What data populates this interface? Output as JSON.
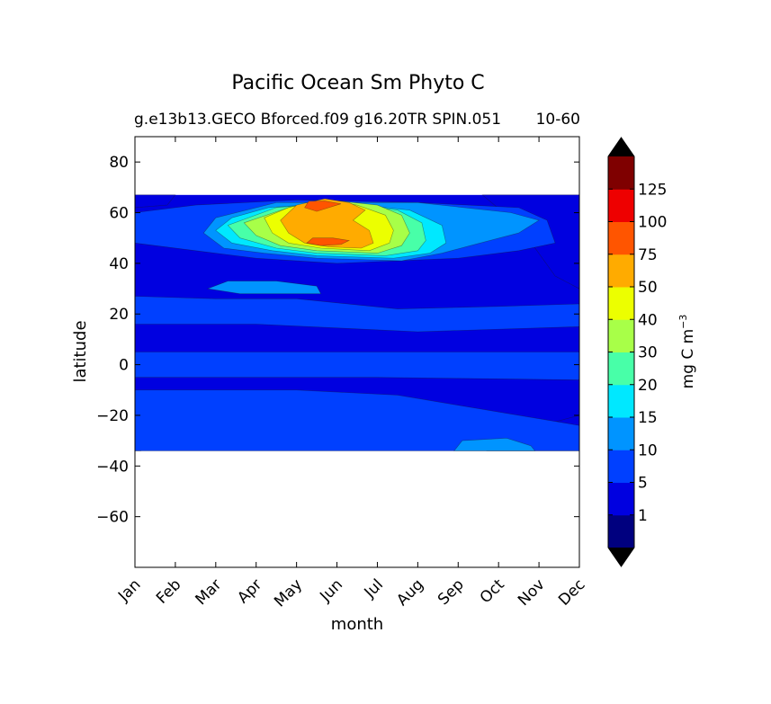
{
  "chart_data": {
    "type": "heatmap",
    "title": "Pacific Ocean Sm Phyto C",
    "subtitle_left": "g.e13b13.GECO Bforced.f09 g16.20TR SPIN.051",
    "subtitle_right": "10-60",
    "xlabel": "month",
    "ylabel": "latitude",
    "x_ticks": [
      "Jan",
      "Feb",
      "Mar",
      "Apr",
      "May",
      "Jun",
      "Jul",
      "Aug",
      "Sep",
      "Oct",
      "Nov",
      "Dec"
    ],
    "y_ticks": [
      80,
      60,
      40,
      20,
      0,
      -20,
      -40,
      -60
    ],
    "y_tick_labels": [
      "80",
      "60",
      "40",
      "20",
      "0",
      "−20",
      "−40",
      "−60"
    ],
    "ylim": [
      -80,
      90
    ],
    "data_lat_range": [
      -34,
      67
    ],
    "grid": false,
    "colorbar": {
      "label": "mg C m",
      "label_superscript": "−3",
      "levels": [
        1,
        5,
        10,
        15,
        20,
        30,
        40,
        50,
        75,
        100,
        125
      ],
      "level_labels": [
        "1",
        "5",
        "10",
        "15",
        "20",
        "30",
        "40",
        "50",
        "75",
        "100",
        "125"
      ],
      "colors": [
        "#00007f",
        "#0000e0",
        "#0040ff",
        "#0094ff",
        "#00e8ff",
        "#48ffa8",
        "#a8ff48",
        "#ecff00",
        "#ffab00",
        "#ff5500",
        "#ee0000",
        "#7f0000"
      ],
      "extend": "both",
      "extend_colors": [
        "#000000",
        "#000000"
      ]
    },
    "contour_regions": [
      {
        "level": 1,
        "name": "far-south-jan",
        "points": [
          [
            0,
            -28
          ],
          [
            0.2,
            -27
          ],
          [
            0.25,
            -30
          ],
          [
            0.15,
            -34
          ],
          [
            0,
            -34
          ]
        ]
      },
      {
        "level": 1,
        "name": "south-dec",
        "points": [
          [
            8.7,
            -34
          ],
          [
            9.4,
            -30
          ],
          [
            10.3,
            -23
          ],
          [
            11,
            -20
          ],
          [
            11,
            -34
          ]
        ]
      },
      {
        "level": 1,
        "name": "upper-dec",
        "points": [
          [
            8.6,
            67
          ],
          [
            9.5,
            55
          ],
          [
            10.4,
            35
          ],
          [
            11,
            30
          ],
          [
            11,
            67
          ]
        ]
      },
      {
        "level": 1,
        "name": "arctic-jan",
        "points": [
          [
            0,
            67
          ],
          [
            1.0,
            67
          ],
          [
            0.8,
            63
          ],
          [
            0,
            62
          ]
        ]
      },
      {
        "level": 5,
        "name": "equatorial-band",
        "points": [
          [
            0,
            5
          ],
          [
            11,
            5
          ],
          [
            11,
            -6
          ],
          [
            6,
            -5
          ],
          [
            0,
            -5
          ]
        ]
      },
      {
        "level": 5,
        "name": "north-band",
        "points": [
          [
            0,
            27
          ],
          [
            2,
            26
          ],
          [
            4,
            26
          ],
          [
            6.5,
            22
          ],
          [
            9,
            23
          ],
          [
            11,
            24
          ],
          [
            11,
            15
          ],
          [
            7,
            13
          ],
          [
            3,
            16
          ],
          [
            0,
            16
          ]
        ]
      },
      {
        "level": 5,
        "name": "south-band",
        "points": [
          [
            0,
            -10
          ],
          [
            2,
            -10
          ],
          [
            4,
            -10
          ],
          [
            6.5,
            -12
          ],
          [
            8,
            -16
          ],
          [
            9.5,
            -20
          ],
          [
            11,
            -24
          ],
          [
            11,
            -34
          ],
          [
            0,
            -34
          ]
        ]
      },
      {
        "level": 5,
        "name": "north-lobe",
        "points": [
          [
            0,
            48
          ],
          [
            1.5,
            45
          ],
          [
            3,
            42
          ],
          [
            5,
            40
          ],
          [
            8,
            42
          ],
          [
            9.5,
            45
          ],
          [
            10.4,
            48
          ],
          [
            10.2,
            57
          ],
          [
            9.5,
            62
          ],
          [
            7,
            64
          ],
          [
            4,
            65
          ],
          [
            1.5,
            63
          ],
          [
            0,
            60
          ]
        ]
      },
      {
        "level": 10,
        "name": "feb-apr-bloom",
        "points": [
          [
            1.7,
            52
          ],
          [
            2.2,
            46
          ],
          [
            3.2,
            44
          ],
          [
            4.5,
            42
          ],
          [
            6.6,
            41
          ],
          [
            7.6,
            44
          ],
          [
            8.3,
            47
          ],
          [
            9.5,
            52
          ],
          [
            10.0,
            57
          ],
          [
            9.3,
            60
          ],
          [
            7,
            64
          ],
          [
            3.5,
            64
          ],
          [
            2,
            58
          ]
        ]
      },
      {
        "level": 10,
        "name": "sw-patch",
        "points": [
          [
            1.8,
            30
          ],
          [
            2.6,
            28
          ],
          [
            4.6,
            28
          ],
          [
            4.5,
            31
          ],
          [
            3.5,
            33
          ],
          [
            2.3,
            33
          ]
        ]
      },
      {
        "level": 10,
        "name": "sep-south",
        "points": [
          [
            7.9,
            -34
          ],
          [
            8.1,
            -30
          ],
          [
            9.2,
            -29
          ],
          [
            9.8,
            -32
          ],
          [
            9.9,
            -34
          ]
        ]
      },
      {
        "level": 15,
        "name": "bloom-15",
        "points": [
          [
            2.0,
            53
          ],
          [
            2.4,
            48
          ],
          [
            3.4,
            45
          ],
          [
            4.5,
            43
          ],
          [
            6.4,
            42
          ],
          [
            7.3,
            44
          ],
          [
            7.7,
            48
          ],
          [
            7.6,
            55
          ],
          [
            6.8,
            61
          ],
          [
            5,
            64
          ],
          [
            3.3,
            62
          ],
          [
            2.4,
            58
          ]
        ]
      },
      {
        "level": 20,
        "name": "bloom-20",
        "points": [
          [
            2.3,
            55
          ],
          [
            2.6,
            50
          ],
          [
            3.5,
            46
          ],
          [
            4.5,
            44
          ],
          [
            6.2,
            43
          ],
          [
            7.0,
            45
          ],
          [
            7.2,
            49
          ],
          [
            7.1,
            56
          ],
          [
            6.5,
            61
          ],
          [
            5,
            64
          ],
          [
            3.5,
            62
          ]
        ]
      },
      {
        "level": 30,
        "name": "bloom-30",
        "points": [
          [
            2.7,
            56
          ],
          [
            3.0,
            51
          ],
          [
            3.6,
            47
          ],
          [
            4.5,
            45
          ],
          [
            6.0,
            44
          ],
          [
            6.6,
            47
          ],
          [
            6.8,
            52
          ],
          [
            6.6,
            59
          ],
          [
            6.0,
            63
          ],
          [
            4.8,
            65
          ],
          [
            3.8,
            62
          ]
        ]
      },
      {
        "level": 40,
        "name": "bloom-40",
        "points": [
          [
            3.2,
            58
          ],
          [
            3.4,
            52
          ],
          [
            3.8,
            48
          ],
          [
            4.6,
            46
          ],
          [
            5.8,
            45
          ],
          [
            6.3,
            48
          ],
          [
            6.4,
            53
          ],
          [
            6.2,
            59
          ],
          [
            5.5,
            63
          ],
          [
            4.6,
            65
          ],
          [
            3.8,
            62
          ]
        ]
      },
      {
        "level": 50,
        "name": "bloom-50",
        "points": [
          [
            3.6,
            57
          ],
          [
            3.8,
            52
          ],
          [
            4.2,
            48
          ],
          [
            4.8,
            46.5
          ],
          [
            5.6,
            46
          ],
          [
            5.9,
            48
          ],
          [
            5.8,
            53
          ],
          [
            5.4,
            57
          ],
          [
            5.7,
            61
          ],
          [
            5.3,
            64
          ],
          [
            4.7,
            65.5
          ],
          [
            4.0,
            63
          ]
        ]
      },
      {
        "level": 75,
        "name": "bloom-75-lower",
        "points": [
          [
            4.25,
            48
          ],
          [
            4.6,
            47
          ],
          [
            5.1,
            47.5
          ],
          [
            5.3,
            49
          ],
          [
            4.9,
            50
          ],
          [
            4.4,
            50
          ]
        ]
      },
      {
        "level": 75,
        "name": "bloom-75-upper",
        "points": [
          [
            4.2,
            62
          ],
          [
            4.5,
            60.5
          ],
          [
            4.8,
            62
          ],
          [
            5.1,
            63.5
          ],
          [
            4.7,
            64.6
          ],
          [
            4.3,
            64.5
          ]
        ]
      }
    ]
  }
}
